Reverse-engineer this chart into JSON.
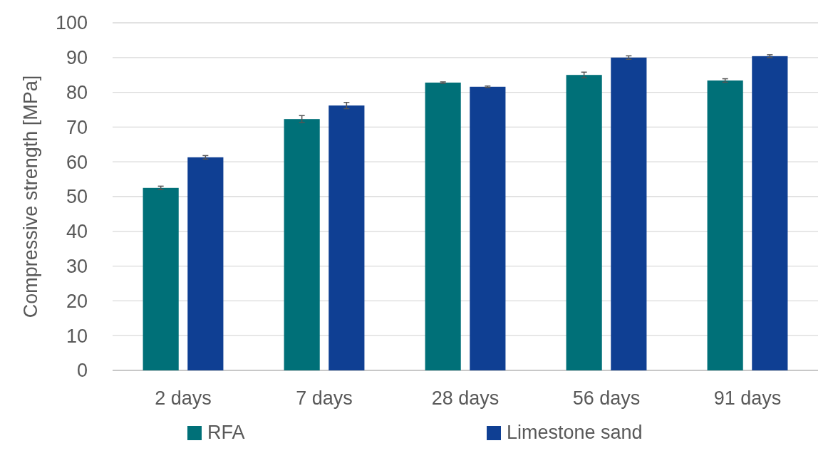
{
  "chart_data": {
    "type": "bar",
    "ylabel": "Compressive strength [MPa]",
    "categories": [
      "2 days",
      "7 days",
      "28 days",
      "56 days",
      "91 days"
    ],
    "series": [
      {
        "name": "RFA",
        "color": "#007078",
        "values": [
          52.5,
          72.3,
          82.8,
          85.0,
          83.4
        ],
        "errors": [
          0.5,
          1.0,
          0.2,
          0.8,
          0.5
        ]
      },
      {
        "name": "Limestone sand",
        "color": "#0f3f93",
        "values": [
          61.3,
          76.2,
          81.6,
          90.0,
          90.4
        ],
        "errors": [
          0.5,
          0.9,
          0.2,
          0.5,
          0.4
        ]
      }
    ],
    "ylim": [
      0,
      100
    ],
    "yticks": [
      0,
      10,
      20,
      30,
      40,
      50,
      60,
      70,
      80,
      90,
      100
    ],
    "grid": "y",
    "legend": "bottom"
  }
}
